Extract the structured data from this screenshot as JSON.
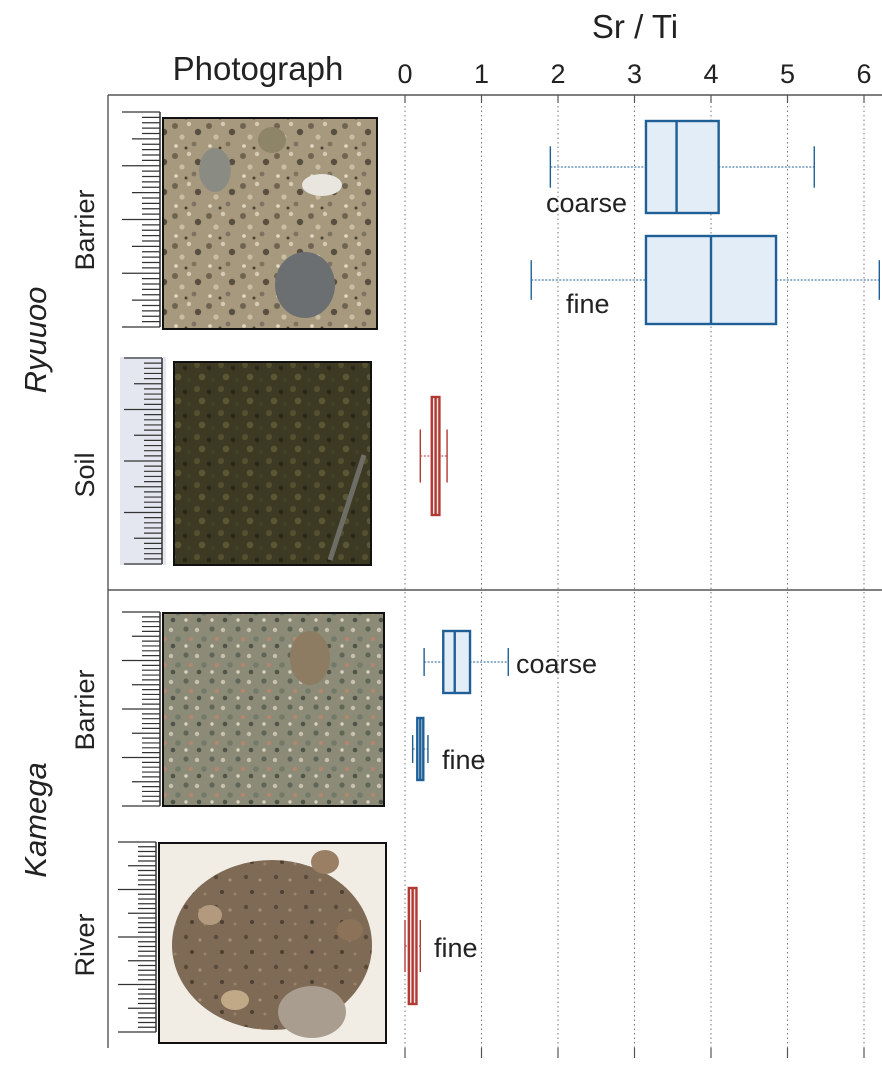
{
  "chart_data": {
    "type": "box",
    "title": "Sr / Ti",
    "photo_column_title": "Photograph",
    "xlabel": "Sr / Ti",
    "xlim": [
      -0.1,
      6.1
    ],
    "xticks": [
      0,
      1,
      2,
      3,
      4,
      5,
      6
    ],
    "grid": "vertical dotted",
    "colors": {
      "barrier": "#1f5f96",
      "barrier_fill": "#e2edf7",
      "river_soil": "#b23a35",
      "river_soil_fill": "#f6e4e1"
    },
    "groups": [
      {
        "name": "Ryuuoo",
        "rows": [
          {
            "name": "Barrier",
            "photo": "barrier-gravel",
            "boxes": [
              {
                "label": "coarse",
                "min": 1.9,
                "q1": 3.15,
                "median": 3.55,
                "q3": 4.1,
                "max": 5.35
              },
              {
                "label": "fine",
                "min": 1.65,
                "q1": 3.15,
                "median": 4.0,
                "q3": 4.85,
                "max": 6.2
              }
            ]
          },
          {
            "name": "Soil",
            "photo": "soil",
            "boxes": [
              {
                "label": "",
                "min": 0.2,
                "q1": 0.35,
                "median": 0.4,
                "q3": 0.45,
                "max": 0.55
              }
            ]
          }
        ]
      },
      {
        "name": "Kamega",
        "rows": [
          {
            "name": "Barrier",
            "photo": "barrier-gravel",
            "boxes": [
              {
                "label": "coarse",
                "min": 0.25,
                "q1": 0.5,
                "median": 0.65,
                "q3": 0.85,
                "max": 1.35
              },
              {
                "label": "fine",
                "min": 0.1,
                "q1": 0.18,
                "median": 0.2,
                "q3": 0.22,
                "max": 0.3
              }
            ]
          },
          {
            "name": "River",
            "photo": "river-gravel",
            "boxes": [
              {
                "label": "fine",
                "min": 0.0,
                "q1": 0.05,
                "median": 0.1,
                "q3": 0.15,
                "max": 0.2
              }
            ]
          }
        ]
      }
    ]
  }
}
